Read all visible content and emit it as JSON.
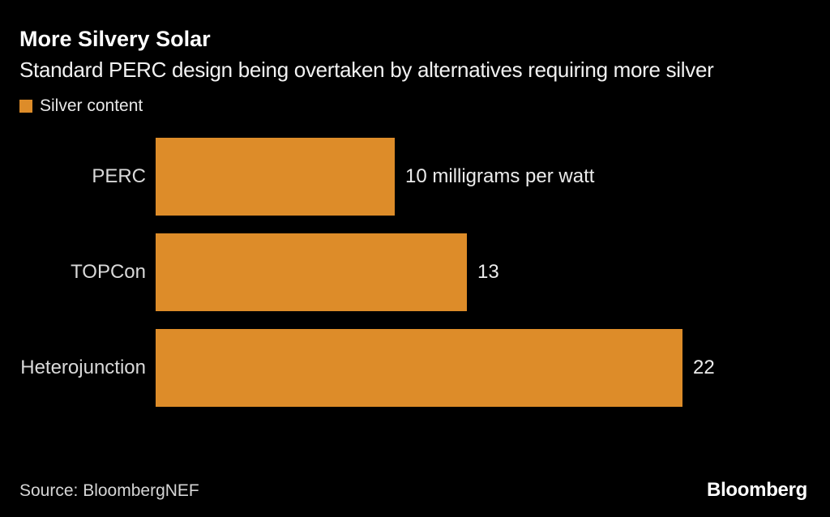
{
  "chart": {
    "title": "More Silvery Solar",
    "subtitle": "Standard PERC design being overtaken by alternatives requiring more silver",
    "legend": {
      "label": "Silver content"
    },
    "source": "Source: BloombergNEF",
    "brand": "Bloomberg"
  },
  "colors": {
    "background": "#000000",
    "bar_orange": "#DD8C29",
    "title_text": "#FFFFFF",
    "body_text": "#E8E8E8"
  },
  "chart_data": {
    "type": "bar",
    "orientation": "horizontal",
    "title": "More Silvery Solar",
    "subtitle": "Standard PERC design being overtaken by alternatives requiring more silver",
    "series_name": "Silver content",
    "categories": [
      "PERC",
      "TOPCon",
      "Heterojunction"
    ],
    "values": [
      10,
      13,
      22
    ],
    "value_labels": [
      "10 milligrams per watt",
      "13",
      "22"
    ],
    "unit": "milligrams per watt",
    "xlim": [
      0,
      22
    ],
    "grid": false,
    "legend_position": "top-left",
    "bar_color": "#DD8C29",
    "source": "Source: BloombergNEF"
  }
}
